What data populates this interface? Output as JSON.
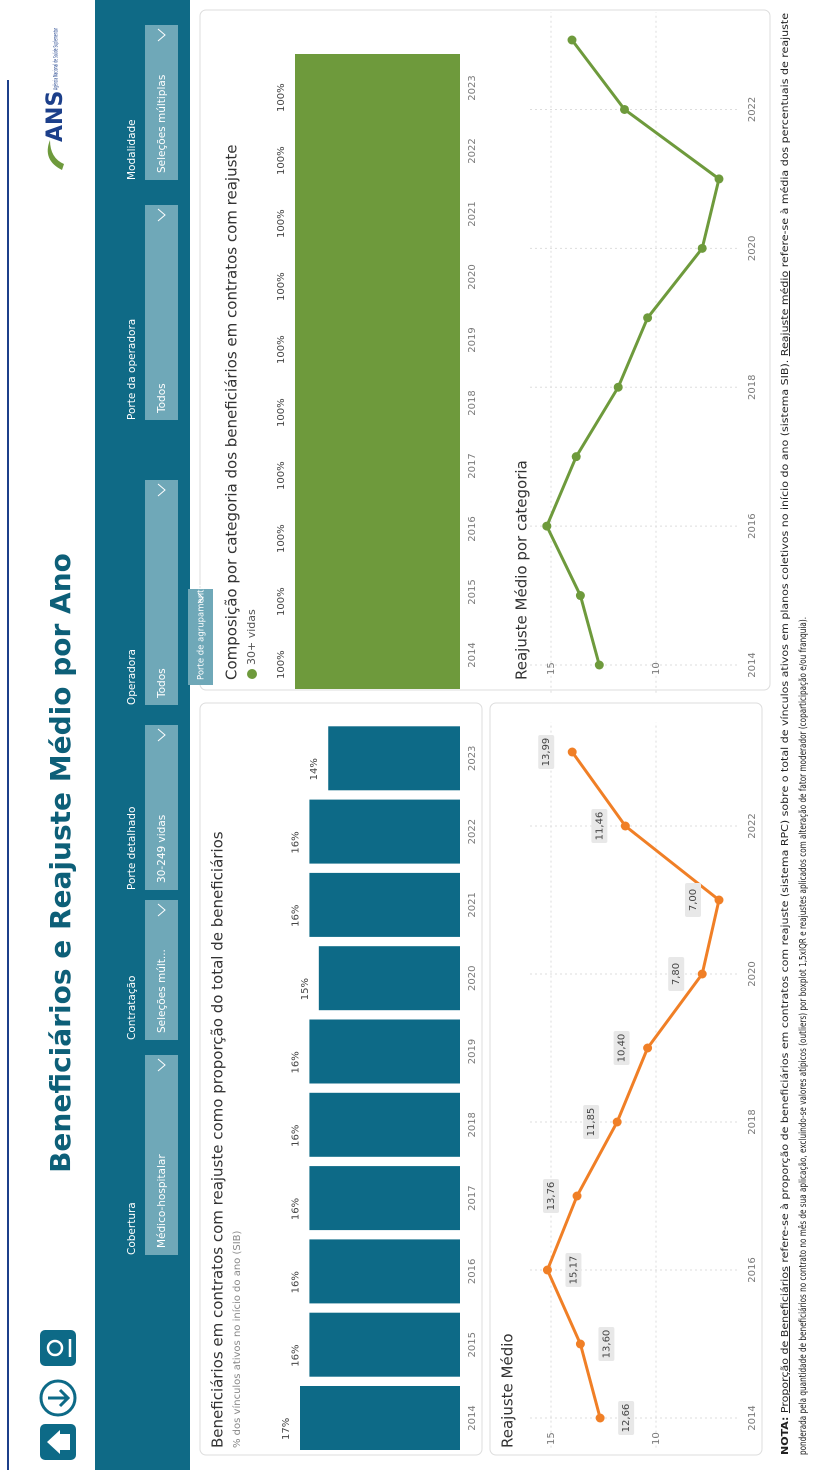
{
  "header": {
    "title": "Beneficiários e Reajuste Médio por Ano",
    "logo": "ANS",
    "logo_subtitle": "Agência Nacional de Saúde Suplementar"
  },
  "filters": [
    {
      "label": "Cobertura",
      "value": "Médico-hospitalar"
    },
    {
      "label": "Contratação",
      "value": "Seleções múlt..."
    },
    {
      "label": "Porte detalhado",
      "value": "30-249 vidas"
    },
    {
      "label": "Operadora",
      "value": "Todos"
    },
    {
      "label": "Porte da operadora",
      "value": "Todos"
    },
    {
      "label": "Modalidade",
      "value": "Seleções múltiplas"
    }
  ],
  "group_filter": "Porte de agrupamento",
  "chart_data": [
    {
      "type": "bar",
      "title": "Beneficiários em contratos com reajuste como proporção do total de beneficiários",
      "subtitle": "% dos vínculos ativos no início do ano (SIB)",
      "categories": [
        "2014",
        "2015",
        "2016",
        "2017",
        "2018",
        "2019",
        "2020",
        "2021",
        "2022",
        "2023"
      ],
      "values": [
        17,
        16,
        16,
        16,
        16,
        16,
        15,
        16,
        16,
        14
      ],
      "value_labels": [
        "17%",
        "16%",
        "16%",
        "16%",
        "16%",
        "16%",
        "15%",
        "16%",
        "16%",
        "14%"
      ],
      "color": "#0d6a87"
    },
    {
      "type": "line",
      "title": "Reajuste Médio",
      "x": [
        2014,
        2015,
        2016,
        2017,
        2018,
        2019,
        2020,
        2021,
        2022,
        2023
      ],
      "values": [
        12.66,
        13.6,
        15.17,
        13.76,
        11.85,
        10.4,
        7.8,
        7.0,
        11.46,
        13.99
      ],
      "value_labels": [
        "12,66",
        "13,60",
        "15,17",
        "13,76",
        "11,85",
        "10,40",
        "7,80",
        "7,00",
        "11,46",
        "13,99"
      ],
      "color": "#f07f26",
      "xlim": [
        2013.6,
        2023.4
      ],
      "xticks": [
        2014,
        2016,
        2018,
        2020,
        2022
      ],
      "ylim": [
        6,
        16
      ],
      "yticks": [
        10,
        15
      ],
      "grid": true
    },
    {
      "type": "bar",
      "title": "Composição por categoria dos beneficiários em contratos com reajuste",
      "categories": [
        "2014",
        "2015",
        "2016",
        "2017",
        "2018",
        "2019",
        "2020",
        "2021",
        "2022",
        "2023"
      ],
      "series": [
        {
          "name": "30+ vidas",
          "color": "#6e9a3c",
          "values": [
            100,
            100,
            100,
            100,
            100,
            100,
            100,
            100,
            100,
            100
          ],
          "value_labels": [
            "100%",
            "100%",
            "100%",
            "100%",
            "100%",
            "100%",
            "100%",
            "100%",
            "100%",
            "100%"
          ]
        }
      ]
    },
    {
      "type": "line",
      "title": "Reajuste Médio por categoria",
      "x": [
        2014,
        2015,
        2016,
        2017,
        2018,
        2019,
        2020,
        2021,
        2022,
        2023
      ],
      "values": [
        12.7,
        13.6,
        15.2,
        13.8,
        11.8,
        10.4,
        7.8,
        7.0,
        11.5,
        14.0
      ],
      "color": "#6e9a3c",
      "xlim": [
        2013.6,
        2023.4
      ],
      "xticks": [
        2014,
        2016,
        2018,
        2020,
        2022
      ],
      "ylim": [
        6,
        16
      ],
      "yticks": [
        10,
        15
      ],
      "grid": true
    }
  ],
  "note": {
    "label": "NOTA:",
    "term1": "Proporção de Beneficiários",
    "text1": " refere-se à proporção de beneficiários em contratos com reajuste (sistema RPC) sobre o total de vínculos ativos em planos coletivos no início do ano (sistema SIB). ",
    "term2": "Reajuste médio",
    "text2": " refere-se à média dos percentuais de reajuste",
    "text3": "ponderada pela quantidade de beneficiários no contrato no mês de sua aplicação, excluindo-se valores atípicos (outliers) por boxplot 1,5xIQR e reajustes aplicados com alteração de fator moderador (coparticipação e/ou franquia)."
  }
}
